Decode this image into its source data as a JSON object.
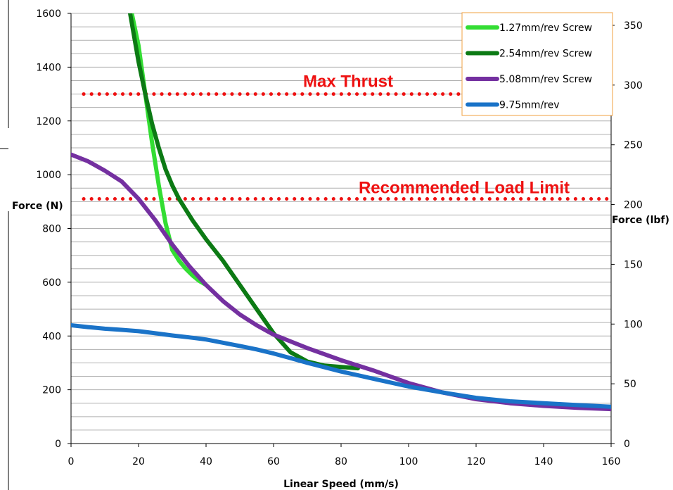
{
  "chart_data": {
    "type": "line",
    "xlabel": "Linear Speed (mm/s)",
    "ylabel": "Force (N)",
    "y2label": "Force (lbf)",
    "xlim": [
      0,
      160
    ],
    "ylim": [
      0,
      1600
    ],
    "y2lim": [
      0,
      360
    ],
    "xticks": [
      "0",
      "20",
      "40",
      "60",
      "80",
      "100",
      "120",
      "140",
      "160"
    ],
    "yticks": [
      "0",
      "200",
      "400",
      "600",
      "800",
      "1000",
      "1200",
      "1400",
      "1600"
    ],
    "y2ticks": [
      "0",
      "50",
      "100",
      "150",
      "200",
      "250",
      "300",
      "350"
    ],
    "grid": true,
    "legend_position": "top-right",
    "annotations": [
      {
        "text": "Max Thrust",
        "y": 1300,
        "color": "#ee1111",
        "style": "dotted"
      },
      {
        "text": "Recommended Load Limit",
        "y": 910,
        "color": "#ee1111",
        "style": "dotted"
      }
    ],
    "series": [
      {
        "name": "1.27mm/rev Screw",
        "color": "#33dd33",
        "x": [
          18,
          20,
          22,
          24,
          26,
          28,
          30,
          32,
          34,
          36,
          38,
          40
        ],
        "y": [
          1600,
          1480,
          1300,
          1120,
          960,
          820,
          720,
          680,
          650,
          625,
          605,
          590
        ]
      },
      {
        "name": "2.54mm/rev Screw",
        "color": "#0c7a14",
        "x": [
          17.5,
          20,
          22,
          24,
          26,
          28,
          30,
          32,
          34,
          36,
          40,
          45,
          50,
          55,
          60,
          65,
          70,
          75,
          80,
          85
        ],
        "y": [
          1600,
          1420,
          1300,
          1190,
          1100,
          1020,
          960,
          910,
          870,
          830,
          760,
          680,
          590,
          500,
          410,
          340,
          305,
          290,
          285,
          280
        ]
      },
      {
        "name": "5.08mm/rev Screw",
        "color": "#7430a0",
        "x": [
          0,
          5,
          10,
          15,
          20,
          25,
          30,
          35,
          40,
          45,
          50,
          55,
          60,
          65,
          70,
          80,
          90,
          100,
          110,
          120,
          130,
          140,
          150,
          160
        ],
        "y": [
          1075,
          1050,
          1015,
          975,
          910,
          830,
          740,
          660,
          590,
          530,
          480,
          440,
          405,
          380,
          355,
          310,
          270,
          225,
          190,
          165,
          150,
          140,
          133,
          128
        ]
      },
      {
        "name": "9.75mm/rev",
        "color": "#1a73c8",
        "x": [
          0,
          5,
          10,
          15,
          20,
          25,
          30,
          35,
          40,
          45,
          50,
          55,
          60,
          65,
          70,
          80,
          90,
          100,
          110,
          120,
          130,
          140,
          150,
          160
        ],
        "y": [
          440,
          433,
          427,
          423,
          418,
          410,
          402,
          395,
          387,
          375,
          363,
          350,
          335,
          318,
          300,
          268,
          240,
          212,
          190,
          170,
          157,
          150,
          143,
          137
        ]
      }
    ]
  }
}
